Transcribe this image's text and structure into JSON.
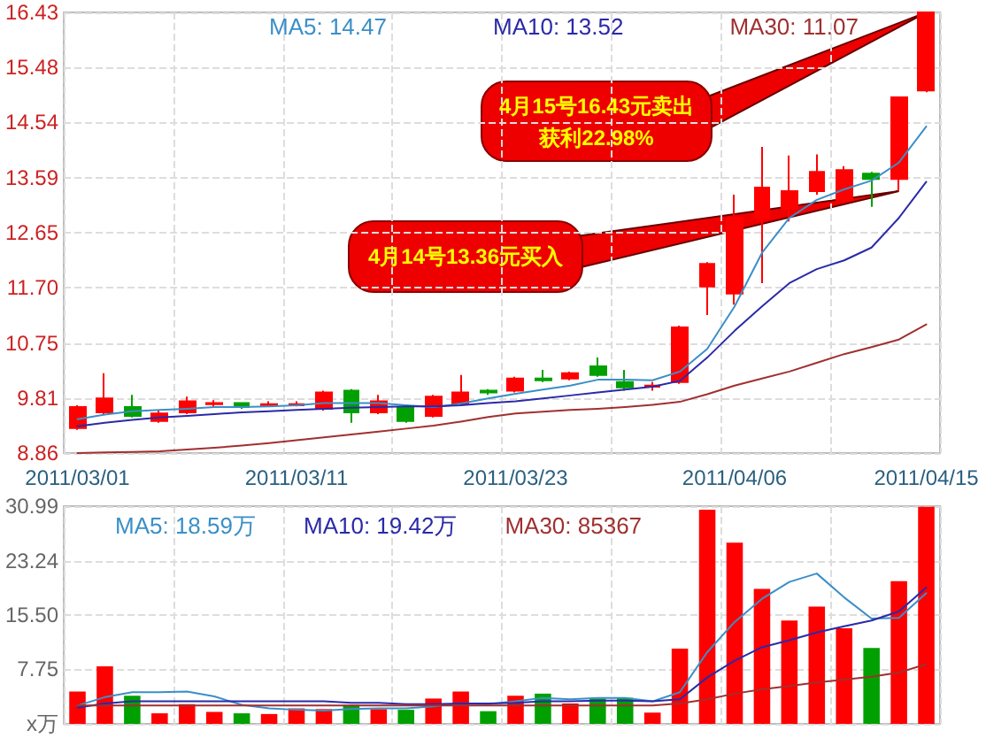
{
  "chart_data": [
    {
      "type": "candlestick",
      "categories": [
        "2011/03/01",
        null,
        null,
        null,
        null,
        null,
        null,
        null,
        "2011/03/11",
        null,
        null,
        null,
        null,
        null,
        null,
        null,
        "2011/03/23",
        null,
        null,
        null,
        null,
        null,
        null,
        null,
        "2011/04/06",
        null,
        null,
        null,
        null,
        null,
        null,
        "2011/04/15"
      ],
      "ohlc": [
        [
          9.29,
          9.68,
          9.26,
          9.65
        ],
        [
          9.56,
          10.23,
          9.53,
          9.8
        ],
        [
          9.65,
          9.86,
          9.47,
          9.5
        ],
        [
          9.41,
          9.59,
          9.38,
          9.54
        ],
        [
          9.56,
          9.83,
          9.53,
          9.75
        ],
        [
          9.7,
          9.77,
          9.65,
          9.72
        ],
        [
          9.72,
          9.72,
          9.62,
          9.65
        ],
        [
          9.68,
          9.75,
          9.65,
          9.7
        ],
        [
          9.68,
          9.75,
          9.66,
          9.7
        ],
        [
          9.62,
          9.93,
          9.59,
          9.9
        ],
        [
          9.93,
          9.96,
          9.38,
          9.56
        ],
        [
          9.56,
          9.86,
          9.53,
          9.75
        ],
        [
          9.65,
          9.68,
          9.38,
          9.41
        ],
        [
          9.5,
          9.86,
          9.47,
          9.83
        ],
        [
          9.71,
          10.2,
          9.68,
          9.9
        ],
        [
          9.93,
          9.96,
          9.86,
          9.9
        ],
        [
          9.93,
          10.17,
          9.9,
          10.14
        ],
        [
          10.14,
          10.29,
          10.08,
          10.11
        ],
        [
          10.14,
          10.26,
          10.11,
          10.23
        ],
        [
          10.35,
          10.5,
          10.17,
          10.2
        ],
        [
          10.08,
          10.29,
          9.93,
          9.99
        ],
        [
          10.0,
          10.08,
          9.93,
          10.02
        ],
        [
          10.08,
          11.05,
          10.05,
          11.02
        ],
        [
          11.72,
          12.14,
          11.23,
          12.11
        ],
        [
          11.6,
          13.3,
          11.41,
          12.9
        ],
        [
          12.9,
          14.12,
          11.78,
          13.42
        ],
        [
          13.06,
          13.97,
          12.84,
          13.36
        ],
        [
          13.36,
          13.99,
          13.3,
          13.69
        ],
        [
          13.21,
          13.79,
          13.15,
          13.72
        ],
        [
          13.66,
          13.69,
          13.09,
          13.57
        ],
        [
          13.57,
          14.97,
          13.36,
          14.97
        ],
        [
          15.09,
          16.43,
          15.06,
          16.43
        ]
      ],
      "colors": [
        "#ff0000",
        "#ff0000",
        "#00a000",
        "#ff0000",
        "#ff0000",
        "#ff0000",
        "#00a000",
        "#ff0000",
        "#ff0000",
        "#ff0000",
        "#00a000",
        "#ff0000",
        "#00a000",
        "#ff0000",
        "#ff0000",
        "#00a000",
        "#ff0000",
        "#00a000",
        "#ff0000",
        "#00a000",
        "#00a000",
        "#ff0000",
        "#ff0000",
        "#ff0000",
        "#ff0000",
        "#ff0000",
        "#ff0000",
        "#ff0000",
        "#ff0000",
        "#00a000",
        "#ff0000",
        "#ff0000"
      ],
      "series": [
        {
          "type": "line",
          "name": "MA5: 14.47",
          "color": "#3a8fc8",
          "values": [
            9.44,
            9.52,
            9.58,
            9.6,
            9.62,
            9.65,
            9.65,
            9.66,
            9.68,
            9.72,
            9.72,
            9.72,
            9.68,
            9.65,
            9.71,
            9.8,
            9.88,
            9.95,
            10.02,
            10.12,
            10.12,
            10.11,
            10.26,
            10.65,
            11.38,
            12.3,
            12.9,
            13.21,
            13.39,
            13.54,
            13.85,
            14.47
          ]
        },
        {
          "type": "line",
          "name": "MA10: 13.52",
          "color": "#2a2aa8",
          "values": [
            9.32,
            9.38,
            9.43,
            9.47,
            9.5,
            9.53,
            9.56,
            9.58,
            9.6,
            9.62,
            9.64,
            9.65,
            9.66,
            9.66,
            9.68,
            9.72,
            9.75,
            9.8,
            9.85,
            9.9,
            9.95,
            10.0,
            10.1,
            10.5,
            10.96,
            11.38,
            11.78,
            12.02,
            12.17,
            12.39,
            12.9,
            13.52
          ]
        },
        {
          "type": "line",
          "name": "MA30: 11.07",
          "color": "#a03030",
          "values": [
            8.86,
            8.87,
            8.88,
            8.89,
            8.92,
            8.95,
            8.99,
            9.03,
            9.08,
            9.13,
            9.18,
            9.23,
            9.28,
            9.33,
            9.4,
            9.48,
            9.54,
            9.57,
            9.6,
            9.62,
            9.65,
            9.69,
            9.74,
            9.87,
            10.02,
            10.14,
            10.26,
            10.41,
            10.56,
            10.68,
            10.81,
            11.07
          ]
        }
      ],
      "ylim": [
        8.86,
        16.43
      ],
      "yticks": [
        {
          "value": 8.86,
          "label": "8.86"
        },
        {
          "value": 9.81,
          "label": "9.81"
        },
        {
          "value": 10.75,
          "label": "10.75"
        },
        {
          "value": 11.7,
          "label": "11.70"
        },
        {
          "value": 12.65,
          "label": "12.65"
        },
        {
          "value": 13.59,
          "label": "13.59"
        },
        {
          "value": 14.54,
          "label": "14.54"
        },
        {
          "value": 15.48,
          "label": "15.48"
        },
        {
          "value": 16.43,
          "label": "16.43"
        }
      ],
      "grid": true,
      "legend": "top",
      "marker": "none",
      "annotations": [
        "4月15号16.43元卖出",
        "获利22.98%",
        "4月14号13.36元买入"
      ]
    },
    {
      "type": "bar",
      "categories": [
        "2011/03/01",
        null,
        null,
        null,
        null,
        null,
        null,
        null,
        "2011/03/11",
        null,
        null,
        null,
        null,
        null,
        null,
        null,
        "2011/03/23",
        null,
        null,
        null,
        null,
        null,
        null,
        null,
        "2011/04/06",
        null,
        null,
        null,
        null,
        null,
        null,
        "2011/04/15"
      ],
      "series": [
        {
          "type": "bar",
          "values": [
            4.6,
            8.2,
            4.0,
            1.5,
            2.8,
            1.7,
            1.5,
            1.4,
            2.2,
            2.1,
            2.7,
            2.1,
            2.0,
            3.6,
            4.6,
            1.8,
            4.0,
            4.3,
            2.9,
            3.6,
            3.7,
            1.6,
            10.7,
            30.5,
            25.8,
            19.2,
            14.7,
            16.7,
            13.6,
            10.8,
            20.3,
            30.9
          ],
          "colors": [
            "#ff0000",
            "#ff0000",
            "#00a000",
            "#ff0000",
            "#ff0000",
            "#ff0000",
            "#00a000",
            "#ff0000",
            "#ff0000",
            "#ff0000",
            "#00a000",
            "#ff0000",
            "#00a000",
            "#ff0000",
            "#ff0000",
            "#00a000",
            "#ff0000",
            "#00a000",
            "#ff0000",
            "#00a000",
            "#00a000",
            "#ff0000",
            "#ff0000",
            "#ff0000",
            "#ff0000",
            "#ff0000",
            "#ff0000",
            "#ff0000",
            "#ff0000",
            "#00a000",
            "#ff0000",
            "#ff0000"
          ]
        },
        {
          "type": "line",
          "name": "MA5: 18.59万",
          "color": "#3a8fc8",
          "values": [
            2.6,
            3.8,
            4.5,
            4.5,
            4.6,
            3.9,
            2.7,
            2.2,
            2.0,
            1.9,
            2.1,
            2.2,
            2.2,
            2.5,
            2.9,
            2.8,
            3.2,
            3.7,
            3.5,
            3.7,
            3.7,
            3.2,
            4.5,
            10.2,
            14.5,
            17.8,
            20.2,
            21.4,
            18.0,
            15.0,
            15.1,
            18.6
          ]
        },
        {
          "type": "line",
          "name": "MA10: 19.42万",
          "color": "#2a2aa8",
          "values": [
            2.3,
            2.9,
            3.2,
            3.2,
            3.2,
            3.2,
            3.2,
            3.2,
            3.2,
            3.2,
            3.0,
            3.0,
            2.8,
            2.8,
            2.9,
            2.9,
            3.0,
            3.2,
            3.2,
            3.3,
            3.3,
            3.2,
            3.5,
            6.6,
            9.0,
            10.9,
            11.9,
            13.0,
            13.9,
            14.7,
            16.0,
            19.4
          ]
        },
        {
          "type": "line",
          "name": "MA30: 85367",
          "color": "#a03030",
          "values": [
            2.6,
            2.6,
            2.6,
            2.6,
            2.6,
            2.6,
            2.6,
            2.6,
            2.6,
            2.6,
            2.6,
            2.6,
            2.6,
            2.6,
            2.6,
            2.6,
            2.6,
            2.6,
            2.6,
            2.6,
            2.6,
            2.6,
            2.9,
            3.5,
            4.3,
            4.9,
            5.4,
            5.9,
            6.3,
            6.7,
            7.3,
            8.5
          ]
        }
      ],
      "ylim": [
        0,
        30.99
      ],
      "yticks": [
        {
          "value": 0,
          "label": "x万"
        },
        {
          "value": 7.75,
          "label": "7.75"
        },
        {
          "value": 15.5,
          "label": "15.50"
        },
        {
          "value": 23.24,
          "label": "23.24"
        },
        {
          "value": 30.99,
          "label": "30.99"
        }
      ],
      "grid": true,
      "legend": "top",
      "marker": "none",
      "tick_labels": "y"
    }
  ]
}
